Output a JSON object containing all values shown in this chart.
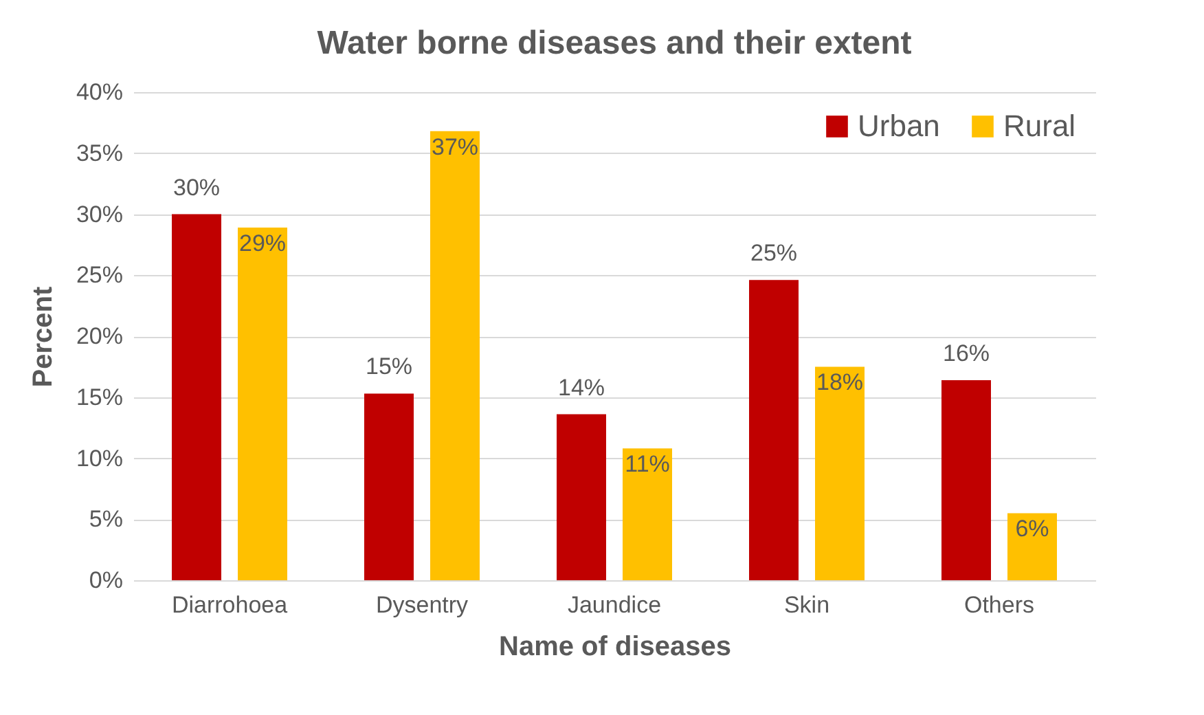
{
  "chart_data": {
    "type": "bar",
    "title": "Water borne diseases and their extent",
    "xlabel": "Name of diseases",
    "ylabel": "Percent",
    "categories": [
      "Diarrohoea",
      "Dysentry",
      "Jaundice",
      "Skin",
      "Others"
    ],
    "series": [
      {
        "name": "Urban",
        "color": "#c00000",
        "values": [
          30.0,
          15.3,
          13.6,
          24.6,
          16.4
        ],
        "value_labels": [
          "30%",
          "15%",
          "14%",
          "25%",
          "16%"
        ]
      },
      {
        "name": "Rural",
        "color": "#ffc000",
        "values": [
          28.9,
          36.8,
          10.8,
          17.5,
          5.5
        ],
        "value_labels": [
          "29%",
          "37%",
          "11%",
          "18%",
          "6%"
        ]
      }
    ],
    "ylim": [
      0,
      40
    ],
    "yticks": [
      {
        "value": 0,
        "label": "0%"
      },
      {
        "value": 5,
        "label": "5%"
      },
      {
        "value": 10,
        "label": "10%"
      },
      {
        "value": 15,
        "label": "15%"
      },
      {
        "value": 20,
        "label": "20%"
      },
      {
        "value": 25,
        "label": "25%"
      },
      {
        "value": 30,
        "label": "30%"
      },
      {
        "value": 35,
        "label": "35%"
      },
      {
        "value": 40,
        "label": "40%"
      }
    ],
    "grid": "y",
    "legend": "top right"
  }
}
